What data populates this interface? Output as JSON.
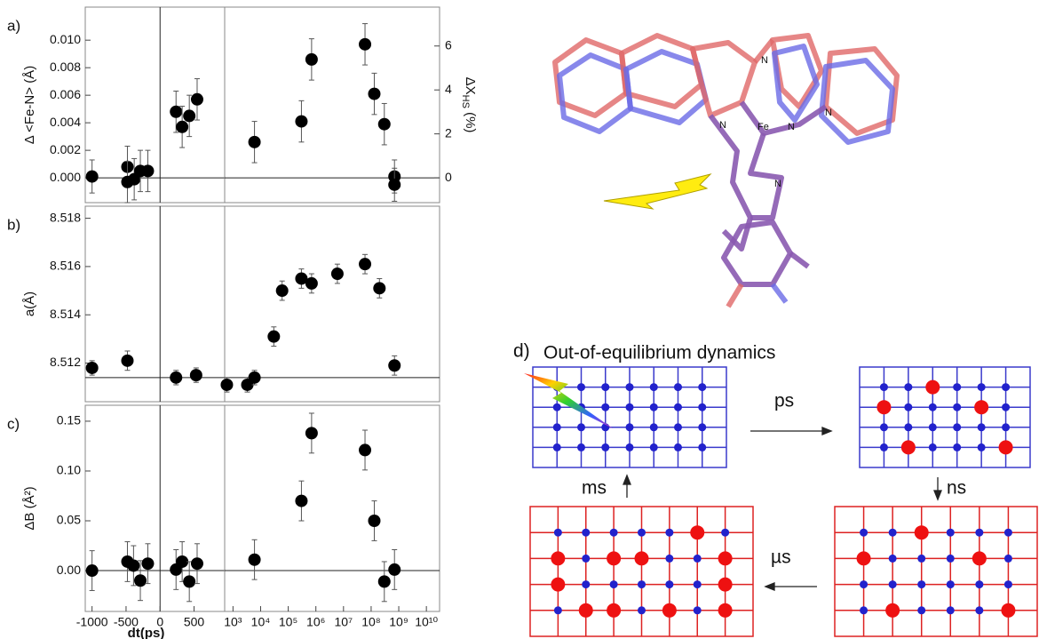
{
  "chart_data": [
    {
      "type": "scatter",
      "label": "a)",
      "ylabel": "Δ <Fe-N> (Å)",
      "color": "#000000",
      "xlim": [
        -1100,
        950
      ],
      "ylim": [
        -0.0018,
        0.0124
      ],
      "yticks": [
        {
          "value": 0,
          "label": "0.000"
        },
        0.002,
        0.004,
        0.006,
        0.008,
        {
          "value": 0.01,
          "label": "0.010"
        }
      ],
      "vline": 0,
      "hline": 0,
      "x": [
        -1000,
        -480,
        -480,
        -380,
        -290,
        -180,
        235,
        325,
        430,
        545
      ],
      "values": [
        0.0001,
        0.0008,
        -0.0003,
        -0.0001,
        0.0005,
        0.0005,
        0.0048,
        0.0037,
        0.0045,
        0.0057
      ],
      "errors": [
        0.0012,
        0.0015,
        0.0015,
        0.0015,
        0.0015,
        0.0015,
        0.0015,
        0.0015,
        0.0015,
        0.0015
      ]
    },
    {
      "type": "scatter",
      "xscale": "log",
      "color": "#000000",
      "xlim": [
        500,
        30000000000
      ],
      "ylim": [
        -0.0018,
        0.0124
      ],
      "y2lim": [
        -1.13,
        7.77
      ],
      "y2ticks": [
        0,
        2,
        4,
        6
      ],
      "y2label": [
        "ΔX",
        "HS",
        " (%)"
      ],
      "hline": 0,
      "x": [
        6000,
        300000,
        700000,
        60000000,
        130000000,
        300000000,
        700000000,
        700000000
      ],
      "values": [
        0.0026,
        0.0041,
        0.0086,
        0.0097,
        0.0061,
        0.0039,
        0.0001,
        -0.0005
      ],
      "errors": [
        0.0015,
        0.0015,
        0.0015,
        0.0015,
        0.0015,
        0.0015,
        0.0012,
        0.0012
      ]
    },
    {
      "type": "scatter",
      "label": "b)",
      "ylabel": "a(Å)",
      "color": "#000000",
      "xlim": [
        -1100,
        950
      ],
      "ylim": [
        8.5104,
        8.5185
      ],
      "yticks": [
        8.512,
        8.514,
        8.516,
        8.518
      ],
      "vline": 0,
      "hline": 8.5114,
      "x": [
        -1000,
        -480,
        235,
        530
      ],
      "values": [
        8.5118,
        8.5121,
        8.5114,
        8.5115
      ],
      "errors": [
        0.0003,
        0.0004,
        0.0003,
        0.0003
      ]
    },
    {
      "type": "scatter",
      "xscale": "log",
      "color": "#000000",
      "xlim": [
        500,
        30000000000
      ],
      "ylim": [
        8.5104,
        8.5185
      ],
      "hline": 8.5114,
      "x": [
        600,
        3300,
        6000,
        30000,
        60000,
        300000,
        700000,
        6000000,
        60000000,
        200000000,
        700000000
      ],
      "values": [
        8.5111,
        8.5111,
        8.5114,
        8.5131,
        8.515,
        8.5155,
        8.5153,
        8.5157,
        8.5161,
        8.5151,
        8.5119
      ],
      "errors": [
        0.0003,
        0.0003,
        0.0003,
        0.0004,
        0.0004,
        0.0004,
        0.0004,
        0.0004,
        0.0004,
        0.0004,
        0.0004
      ]
    },
    {
      "type": "scatter",
      "label": "c)",
      "ylabel": "ΔB (Å²)",
      "xlabel": "dt(ps)",
      "color": "#000000",
      "xlim": [
        -1100,
        950
      ],
      "ylim": [
        -0.041,
        0.166
      ],
      "xticks": [
        -1000,
        -500,
        0,
        500
      ],
      "yticks": [
        {
          "value": 0,
          "label": "0.00"
        },
        0.05,
        {
          "value": 0.1,
          "label": "0.10"
        },
        0.15
      ],
      "vline": 0,
      "hline": 0,
      "x": [
        -1000,
        -480,
        -390,
        -290,
        -180,
        235,
        325,
        430,
        545
      ],
      "values": [
        0,
        0.009,
        0.005,
        -0.01,
        0.007,
        0.001,
        0.009,
        -0.011,
        0.007
      ],
      "errors": [
        0.02,
        0.02,
        0.02,
        0.02,
        0.02,
        0.02,
        0.02,
        0.02,
        0.02
      ]
    },
    {
      "type": "scatter",
      "xscale": "log",
      "color": "#000000",
      "xlim": [
        500,
        30000000000
      ],
      "ylim": [
        -0.041,
        0.166
      ],
      "xticks": [
        {
          "value": 1000,
          "label": "10³"
        },
        {
          "value": 10000,
          "label": "10⁴"
        },
        {
          "value": 100000,
          "label": "10⁵"
        },
        {
          "value": 1000000,
          "label": "10⁶"
        },
        {
          "value": 10000000,
          "label": "10⁷"
        },
        {
          "value": 100000000,
          "label": "10⁸"
        },
        {
          "value": 1000000000,
          "label": "10⁹"
        },
        {
          "value": 10000000000,
          "label": "10¹⁰"
        }
      ],
      "hline": 0,
      "x": [
        6000,
        300000,
        700000,
        60000000,
        130000000,
        300000000,
        700000000
      ],
      "values": [
        0.011,
        0.07,
        0.138,
        0.121,
        0.05,
        -0.011,
        0.001
      ],
      "errors": [
        0.02,
        0.02,
        0.02,
        0.02,
        0.02,
        0.02,
        0.02
      ]
    }
  ],
  "molecule": {
    "atoms": [
      "N",
      "N",
      "Fe",
      "N",
      "N",
      "N"
    ]
  },
  "dynamics": {
    "label": "d)",
    "title": "Out-of-equilibrium dynamics",
    "steps": [
      "ps",
      "ns",
      "µs",
      "ms"
    ]
  }
}
